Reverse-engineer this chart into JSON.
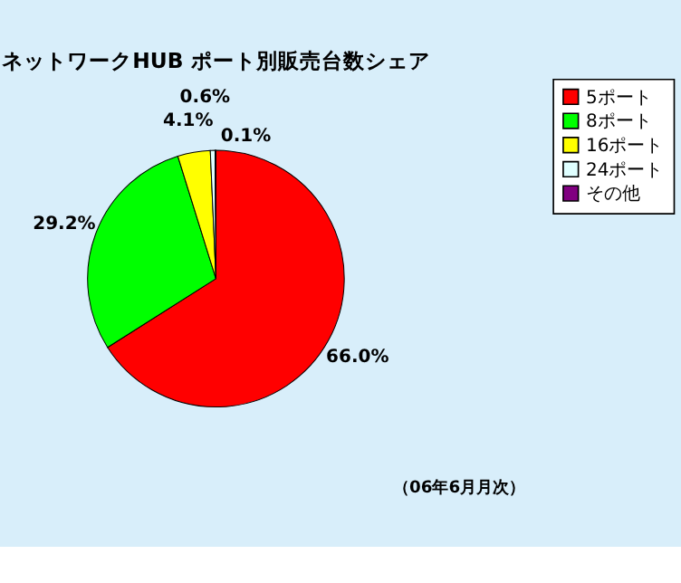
{
  "chart_data": {
    "type": "pie",
    "title": "ネットワークHUB ポート別販売台数シェア",
    "categories": [
      "5ポート",
      "8ポート",
      "16ポート",
      "24ポート",
      "その他"
    ],
    "values": [
      66.0,
      29.2,
      4.1,
      0.6,
      0.1
    ],
    "colors": [
      "#ff0000",
      "#00ff00",
      "#ffff00",
      "#e0ffff",
      "#800080"
    ],
    "value_labels": [
      "66.0%",
      "29.2%",
      "4.1%",
      "0.6%",
      "0.1%"
    ],
    "legend": "right",
    "annotations": [
      "（06年6月月次）"
    ]
  }
}
